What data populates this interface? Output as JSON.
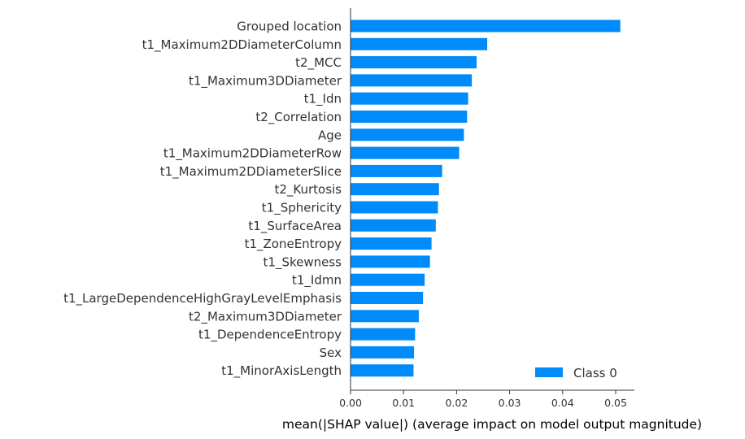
{
  "chart_data": {
    "type": "bar",
    "orientation": "horizontal",
    "categories": [
      "Grouped location",
      "t1_Maximum2DDiameterColumn",
      "t2_MCC",
      "t1_Maximum3DDiameter",
      "t1_Idn",
      "t2_Correlation",
      "Age",
      "t1_Maximum2DDiameterRow",
      "t1_Maximum2DDiameterSlice",
      "t2_Kurtosis",
      "t1_Sphericity",
      "t1_SurfaceArea",
      "t1_ZoneEntropy",
      "t1_Skewness",
      "t1_Idmn",
      "t1_LargeDependenceHighGrayLevelEmphasis",
      "t2_Maximum3DDiameter",
      "t1_DependenceEntropy",
      "Sex",
      "t1_MinorAxisLength"
    ],
    "series": [
      {
        "name": "Class 0",
        "color": "#008bfb",
        "values": [
          0.0508,
          0.0257,
          0.0237,
          0.0228,
          0.0221,
          0.0219,
          0.0213,
          0.0204,
          0.0172,
          0.0166,
          0.0164,
          0.016,
          0.0152,
          0.0149,
          0.0139,
          0.0136,
          0.0128,
          0.0121,
          0.0119,
          0.0118
        ]
      }
    ],
    "xlabel": "mean(|SHAP value|) (average impact on model output magnitude)",
    "xlim": [
      0,
      0.0535
    ],
    "xticks": [
      0.0,
      0.01,
      0.02,
      0.03,
      0.04,
      0.05
    ],
    "xtick_labels": [
      "0.00",
      "0.01",
      "0.02",
      "0.03",
      "0.04",
      "0.05"
    ],
    "grid": false,
    "legend_position": "bottom-right"
  }
}
